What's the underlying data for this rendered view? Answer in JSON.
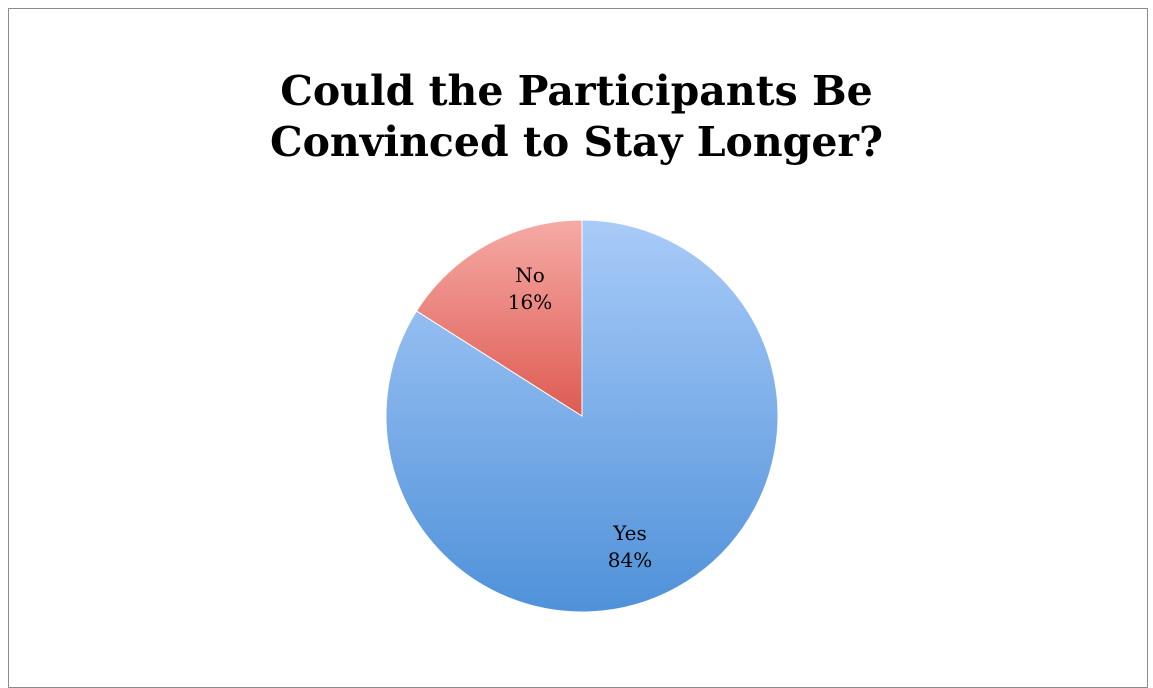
{
  "chart_data": {
    "type": "pie",
    "title": "Could the Participants Be Convinced to Stay Longer?",
    "title_lines": [
      "Could the Participants Be",
      "Convinced to Stay Longer?"
    ],
    "slices": [
      {
        "label": "Yes",
        "value": 84,
        "value_label": "84%",
        "color": "#6ea4e6"
      },
      {
        "label": "No",
        "value": 16,
        "value_label": "16%",
        "color": "#e97e76"
      }
    ],
    "start_angle_deg": 0,
    "direction": "clockwise",
    "legend": "none"
  }
}
